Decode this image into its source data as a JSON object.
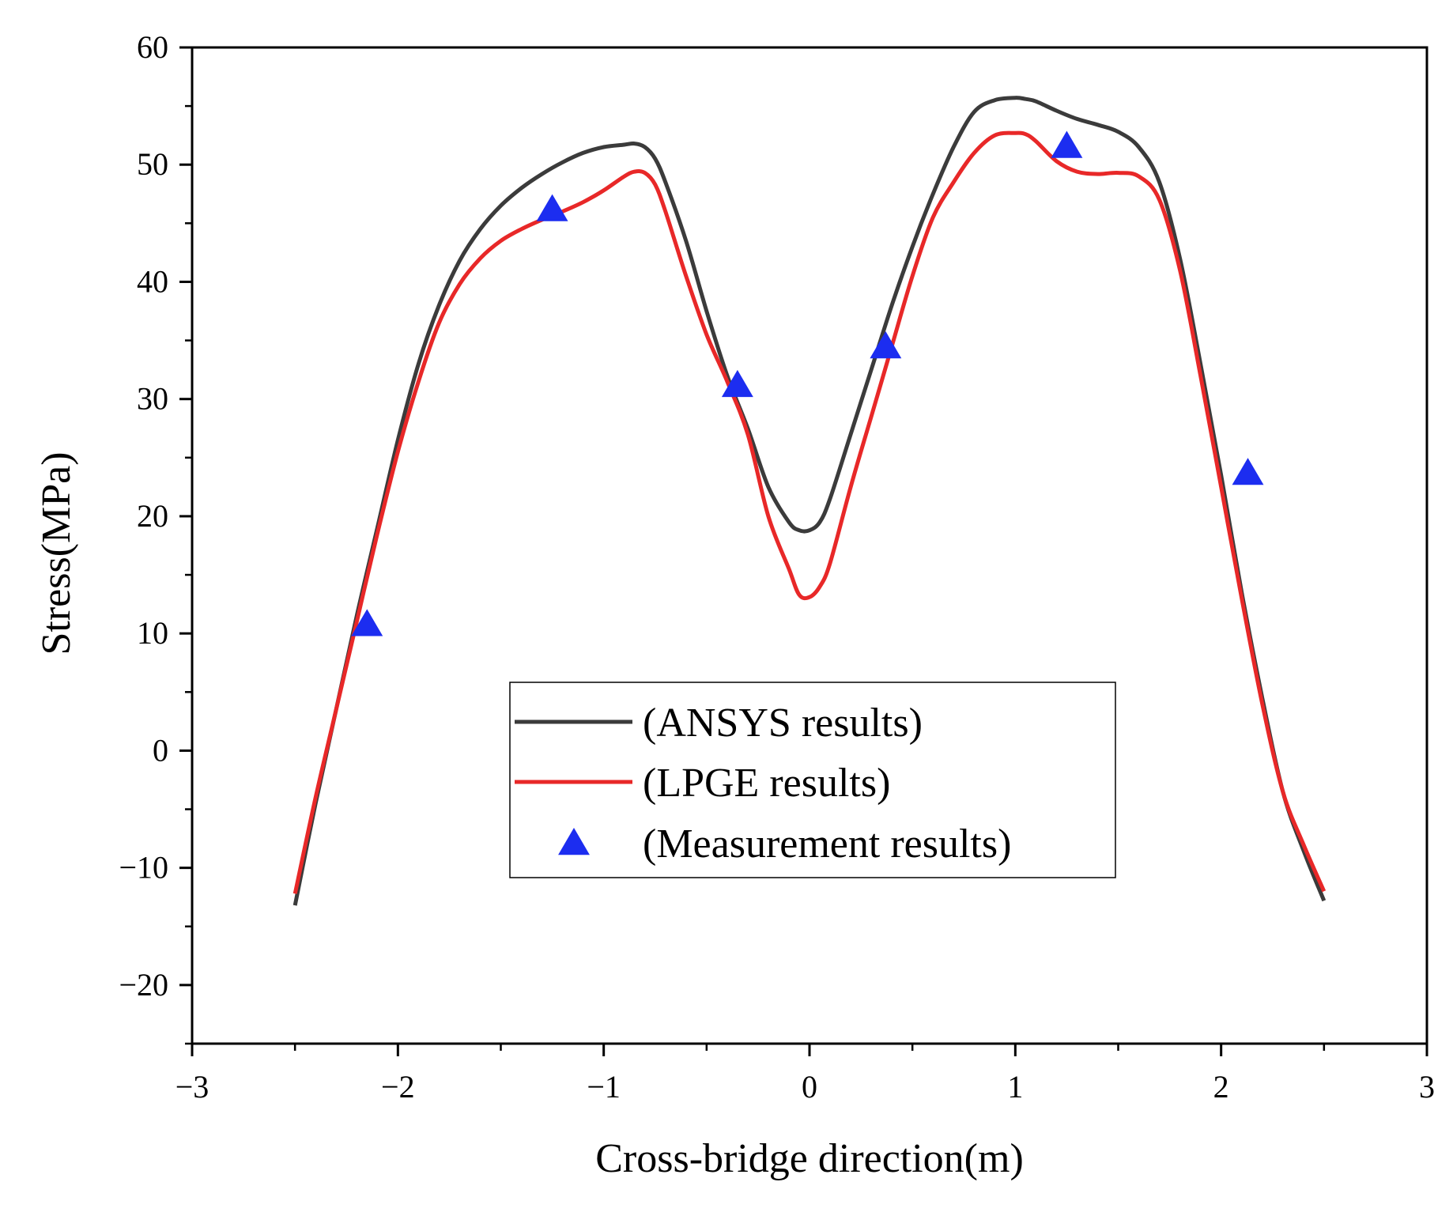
{
  "chart_data": {
    "type": "line",
    "title": "",
    "xlabel": "Cross-bridge direction(m)",
    "ylabel": "Stress(MPa)",
    "xlim": [
      -3,
      3
    ],
    "ylim": [
      -25,
      60
    ],
    "x_ticks": [
      -3,
      -2,
      -1,
      0,
      1,
      2,
      3
    ],
    "x_tick_labels": [
      "−3",
      "−2",
      "−1",
      "0",
      "1",
      "2",
      "3"
    ],
    "y_ticks": [
      -20,
      -10,
      0,
      10,
      20,
      30,
      40,
      50,
      60
    ],
    "y_tick_labels": [
      "−20",
      "−10",
      "0",
      "10",
      "20",
      "30",
      "40",
      "50",
      "60"
    ],
    "grid": false,
    "legend_position": "center-bottom",
    "series": [
      {
        "name": "(ANSYS results)",
        "style": "line",
        "color": "#3b3b3b",
        "x": [
          -2.5,
          -2.4,
          -2.3,
          -2.2,
          -2.1,
          -2.0,
          -1.9,
          -1.8,
          -1.7,
          -1.6,
          -1.5,
          -1.4,
          -1.3,
          -1.2,
          -1.1,
          -1.0,
          -0.9,
          -0.85,
          -0.8,
          -0.75,
          -0.7,
          -0.6,
          -0.5,
          -0.4,
          -0.3,
          -0.2,
          -0.1,
          -0.05,
          0.0,
          0.05,
          0.1,
          0.2,
          0.3,
          0.4,
          0.5,
          0.6,
          0.7,
          0.8,
          0.9,
          1.0,
          1.05,
          1.1,
          1.2,
          1.3,
          1.4,
          1.5,
          1.6,
          1.7,
          1.8,
          1.9,
          2.0,
          2.1,
          2.2,
          2.3,
          2.4,
          2.5
        ],
        "y": [
          -13.2,
          -4.5,
          3.5,
          11.5,
          19.0,
          26.5,
          33.0,
          38.0,
          41.8,
          44.5,
          46.5,
          48.0,
          49.2,
          50.2,
          51.0,
          51.5,
          51.7,
          51.8,
          51.5,
          50.5,
          48.5,
          43.5,
          37.5,
          32.0,
          27.5,
          22.5,
          19.5,
          18.8,
          18.8,
          19.5,
          21.5,
          27.0,
          32.5,
          38.0,
          43.0,
          47.5,
          51.5,
          54.5,
          55.5,
          55.7,
          55.6,
          55.4,
          54.6,
          53.9,
          53.4,
          52.8,
          51.5,
          48.5,
          42.0,
          33.0,
          23.5,
          13.5,
          4.5,
          -3.5,
          -8.5,
          -12.8
        ]
      },
      {
        "name": "(LPGE results)",
        "style": "line",
        "color": "#e82828",
        "x": [
          -2.5,
          -2.4,
          -2.3,
          -2.2,
          -2.1,
          -2.0,
          -1.9,
          -1.8,
          -1.7,
          -1.6,
          -1.5,
          -1.4,
          -1.3,
          -1.2,
          -1.1,
          -1.0,
          -0.9,
          -0.85,
          -0.8,
          -0.75,
          -0.7,
          -0.6,
          -0.5,
          -0.4,
          -0.3,
          -0.2,
          -0.1,
          -0.05,
          0.0,
          0.05,
          0.1,
          0.2,
          0.3,
          0.4,
          0.5,
          0.6,
          0.7,
          0.8,
          0.9,
          1.0,
          1.05,
          1.1,
          1.2,
          1.3,
          1.4,
          1.5,
          1.6,
          1.7,
          1.8,
          1.9,
          2.0,
          2.1,
          2.2,
          2.3,
          2.4,
          2.5
        ],
        "y": [
          -12.2,
          -4.0,
          3.5,
          11.0,
          18.5,
          25.5,
          31.5,
          36.5,
          39.8,
          42.0,
          43.5,
          44.5,
          45.3,
          46.0,
          46.8,
          47.8,
          49.0,
          49.4,
          49.3,
          48.3,
          46.0,
          40.5,
          35.5,
          31.5,
          27.0,
          20.0,
          15.5,
          13.3,
          13.1,
          14.0,
          16.0,
          22.5,
          28.5,
          34.5,
          40.5,
          45.5,
          48.5,
          51.0,
          52.5,
          52.7,
          52.6,
          52.0,
          50.3,
          49.4,
          49.2,
          49.3,
          49.0,
          47.0,
          41.0,
          32.0,
          22.5,
          13.0,
          4.0,
          -3.5,
          -8.0,
          -12.0
        ]
      },
      {
        "name": "(Measurement results)",
        "style": "marker",
        "marker": "triangle-up",
        "color": "#1c2df0",
        "x": [
          -2.15,
          -1.25,
          -0.35,
          0.37,
          1.25,
          2.13
        ],
        "y": [
          10.8,
          46.2,
          31.2,
          34.5,
          51.6,
          23.7
        ]
      }
    ]
  }
}
